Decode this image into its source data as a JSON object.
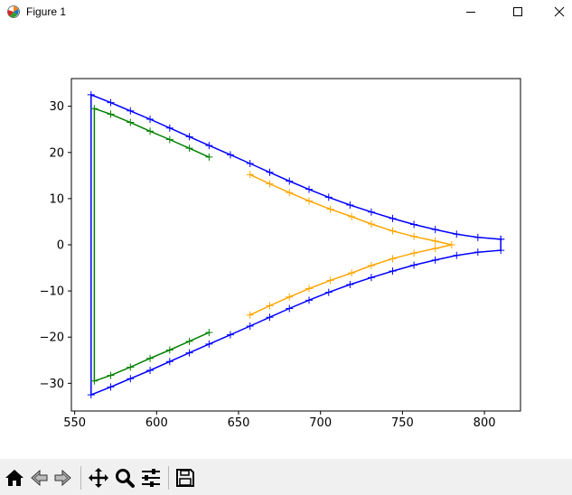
{
  "window": {
    "title": "Figure 1",
    "icons": [
      "matplotlib-icon",
      "minimize-icon",
      "maximize-icon",
      "close-icon"
    ]
  },
  "toolbar": {
    "buttons": [
      {
        "name": "home-button",
        "icon": "home-icon"
      },
      {
        "name": "back-button",
        "icon": "back-arrow-icon"
      },
      {
        "name": "forward-button",
        "icon": "forward-arrow-icon"
      },
      {
        "name": "pan-button",
        "icon": "move-icon"
      },
      {
        "name": "zoom-button",
        "icon": "magnifier-icon"
      },
      {
        "name": "configure-subplots-button",
        "icon": "sliders-icon"
      },
      {
        "name": "save-button",
        "icon": "floppy-disk-icon"
      }
    ]
  },
  "chart_data": {
    "type": "line",
    "title": "",
    "xlabel": "",
    "ylabel": "",
    "xlim": [
      548,
      822
    ],
    "ylim": [
      -36,
      36
    ],
    "xticks": [
      550,
      600,
      650,
      700,
      750,
      800
    ],
    "yticks": [
      -30,
      -20,
      -10,
      0,
      10,
      20,
      30
    ],
    "grid": false,
    "legend": "none",
    "marker": "+",
    "series": [
      {
        "color": "#0000ff",
        "x": [
          810,
          796,
          783,
          770,
          757,
          744,
          731,
          718,
          705,
          693,
          681,
          669,
          657,
          645,
          632,
          620,
          608,
          596,
          584,
          572,
          560,
          560,
          572,
          584,
          596,
          608,
          620,
          632,
          645,
          657,
          669,
          681,
          693,
          705,
          718,
          731,
          744,
          757,
          770,
          783,
          796,
          810,
          810
        ],
        "y": [
          1.2,
          1.6,
          2.3,
          3.3,
          4.4,
          5.7,
          7.1,
          8.6,
          10.3,
          12.0,
          13.8,
          15.7,
          17.6,
          19.5,
          21.5,
          23.4,
          25.3,
          27.2,
          29.0,
          30.8,
          32.5,
          -32.5,
          -30.8,
          -29.0,
          -27.2,
          -25.3,
          -23.4,
          -21.5,
          -19.5,
          -17.6,
          -15.7,
          -13.8,
          -12.0,
          -10.3,
          -8.6,
          -7.1,
          -5.7,
          -4.4,
          -3.3,
          -2.3,
          -1.6,
          -1.2,
          1.2
        ]
      },
      {
        "color": "#008000",
        "x": [
          632,
          620,
          608,
          596,
          584,
          572,
          562,
          562,
          572,
          584,
          596,
          608,
          620,
          632
        ],
        "y": [
          19.0,
          20.9,
          22.8,
          24.6,
          26.5,
          28.3,
          29.5,
          -29.5,
          -28.3,
          -26.5,
          -24.6,
          -22.8,
          -20.9,
          -19.0
        ]
      },
      {
        "color": "#ffa500",
        "x": [
          657,
          669,
          681,
          693,
          706,
          719,
          731,
          744,
          757,
          770,
          780,
          770,
          757,
          744,
          731,
          719,
          706,
          693,
          681,
          669,
          657
        ],
        "y": [
          15.2,
          13.2,
          11.3,
          9.5,
          7.7,
          6.1,
          4.5,
          3.0,
          1.8,
          0.8,
          0.0,
          -0.8,
          -1.8,
          -3.0,
          -4.5,
          -6.1,
          -7.7,
          -9.5,
          -11.3,
          -13.2,
          -15.2
        ]
      }
    ]
  }
}
